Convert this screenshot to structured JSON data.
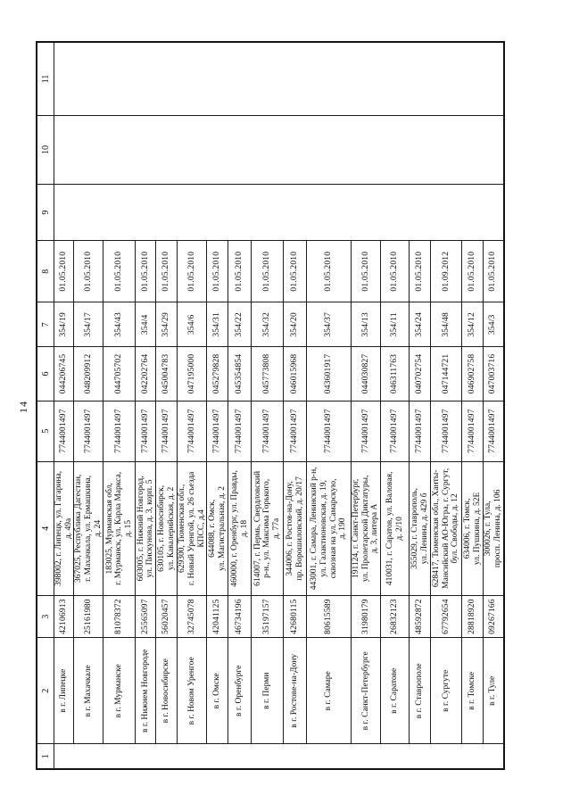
{
  "page": {
    "number": "14"
  },
  "table": {
    "headers": [
      "1",
      "2",
      "3",
      "4",
      "5",
      "6",
      "7",
      "8",
      "9",
      "10",
      "11"
    ],
    "rows": [
      {
        "city": "в г. Липецке",
        "code": "42106913",
        "address": "398002, г. Липецк, ул. Гагарина,\nд. 49а",
        "reg": "7744001497",
        "bik": "044206745",
        "office": "354/19",
        "date": "01.05.2010"
      },
      {
        "city": "в г. Махачкале",
        "code": "25161980",
        "address": "367025, Республика Дагестан,\nг. Махачкала, ул. Ермашкина,\nд. 24",
        "reg": "7744001497",
        "bik": "048209912",
        "office": "354/17",
        "date": "01.05.2010"
      },
      {
        "city": "в г. Мурманске",
        "code": "81078372",
        "address": "183025, Мурманская обл,\nг. Мурманск, ул. Карла Маркса,\nд. 15",
        "reg": "7744001497",
        "bik": "044705702",
        "office": "354/43",
        "date": "01.05.2010"
      },
      {
        "city": "в г. Нижнем Новгороде",
        "code": "25565097",
        "address": "603005, г. Нижний Новгород,\nул. Пискунова, д. 3, корп. 5",
        "reg": "7744001497",
        "bik": "042202764",
        "office": "354/4",
        "date": "01.05.2010"
      },
      {
        "city": "в г. Новосибирске",
        "code": "56020457",
        "address": "630105, г. Новосибирск,\nул. Кавалерийская, д. 2",
        "reg": "7744001497",
        "bik": "045004783",
        "office": "354/29",
        "date": "01.05.2010"
      },
      {
        "city": "в г. Новом Уренгое",
        "code": "32745078",
        "address": "629300, Тюменская обл.,\nг. Новый Уренгой, ул. 26 съезда\nКПСС, д.4",
        "reg": "7744001497",
        "bik": "047195000",
        "office": "354/6",
        "date": "01.05.2010"
      },
      {
        "city": "в г. Омске",
        "code": "42041125",
        "address": "644088, г. Омск,\nул. Магистральная, д. 2",
        "reg": "7744001497",
        "bik": "045279828",
        "office": "354/31",
        "date": "01.05.2010"
      },
      {
        "city": "в г. Оренбурге",
        "code": "46734196",
        "address": "460000, г. Оренбург, ул. Правды,\nд. 18",
        "reg": "7744001497",
        "bik": "045354854",
        "office": "354/22",
        "date": "01.05.2010"
      },
      {
        "city": "в г. Перми",
        "code": "35197157",
        "address": "614007, г. Пермь, Свердловский\nр-н., ул. Максима Горького,\nд. 77а",
        "reg": "7744001497",
        "bik": "045773808",
        "office": "354/32",
        "date": "01.05.2010"
      },
      {
        "city": "в г. Ростове-на-Дону",
        "code": "42680115",
        "address": "344006, г. Ростов-на-Дону,\nпр. Ворошиловский, д. 20/17",
        "reg": "7744001497",
        "bik": "046015968",
        "office": "354/20",
        "date": "01.05.2010"
      },
      {
        "city": "в г. Самаре",
        "code": "80615589",
        "address": "443001, г. Самара, Ленинский р-н,\nул. Галактионовская, д. 19,\nсквозная на ул. Самарскую,\nд. 190",
        "reg": "7744001497",
        "bik": "043601917",
        "office": "354/37",
        "date": "01.05.2010"
      },
      {
        "city": "в г. Санкт-Петербурге",
        "code": "31980179",
        "address": "191124, г. Санкт-Петербург,\nул. Пролетарской Диктатуры,\nд. 3, литера А",
        "reg": "7744001497",
        "bik": "044030827",
        "office": "354/13",
        "date": "01.05.2010"
      },
      {
        "city": "в г. Саратове",
        "code": "26832123",
        "address": "410031, г. Саратов, ул. Валовая,\nд. 2/10",
        "reg": "7744001497",
        "bik": "046311763",
        "office": "354/11",
        "date": "01.05.2010"
      },
      {
        "city": "в г. Ставрополе",
        "code": "48592872",
        "address": "355029, г. Ставрополь,\nул. Ленина, д. 429 б",
        "reg": "7744001497",
        "bik": "040702754",
        "office": "354/24",
        "date": "01.05.2010"
      },
      {
        "city": "в г. Сургуте",
        "code": "67792654",
        "address": "628417, Тюменская обл., Ханты-\nМансийский АО-Югра, г. Сургут,\nбул. Свободы, д. 12",
        "reg": "7744001497",
        "bik": "047144721",
        "office": "354/48",
        "date": "01.09.2012"
      },
      {
        "city": "в г. Томске",
        "code": "28818920",
        "address": "634006, г. Томск,\nул. Пушкина, д. 52Е",
        "reg": "7744001497",
        "bik": "046902758",
        "office": "354/12",
        "date": "01.05.2010"
      },
      {
        "city": "в г. Туле",
        "code": "09267166",
        "address": "300026, г. Тула,\nпросп. Ленина, д. 106",
        "reg": "7744001497",
        "bik": "047003716",
        "office": "354/3",
        "date": "01.05.2010"
      }
    ]
  }
}
